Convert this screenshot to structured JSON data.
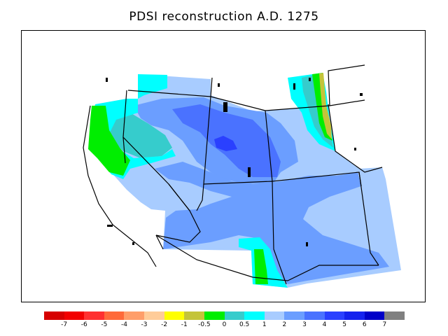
{
  "title": "PDSI reconstruction A.D. 1275",
  "colorbar": {
    "colors": [
      "#d60000",
      "#f20000",
      "#ff3030",
      "#ff6a3a",
      "#ff9e6a",
      "#ffcc99",
      "#ffff00",
      "#c4c43a",
      "#00ee00",
      "#36cccc",
      "#00ffff",
      "#a8ccff",
      "#6b9eff",
      "#4a72ff",
      "#2a40ff",
      "#1422ee",
      "#0000c8",
      "#808080"
    ],
    "labels": [
      "-7",
      "-6",
      "-5",
      "-4",
      "-3",
      "-2",
      "-1",
      "-0.5",
      "0",
      "0.5",
      "1",
      "2",
      "3",
      "4",
      "5",
      "6",
      "7"
    ]
  }
}
